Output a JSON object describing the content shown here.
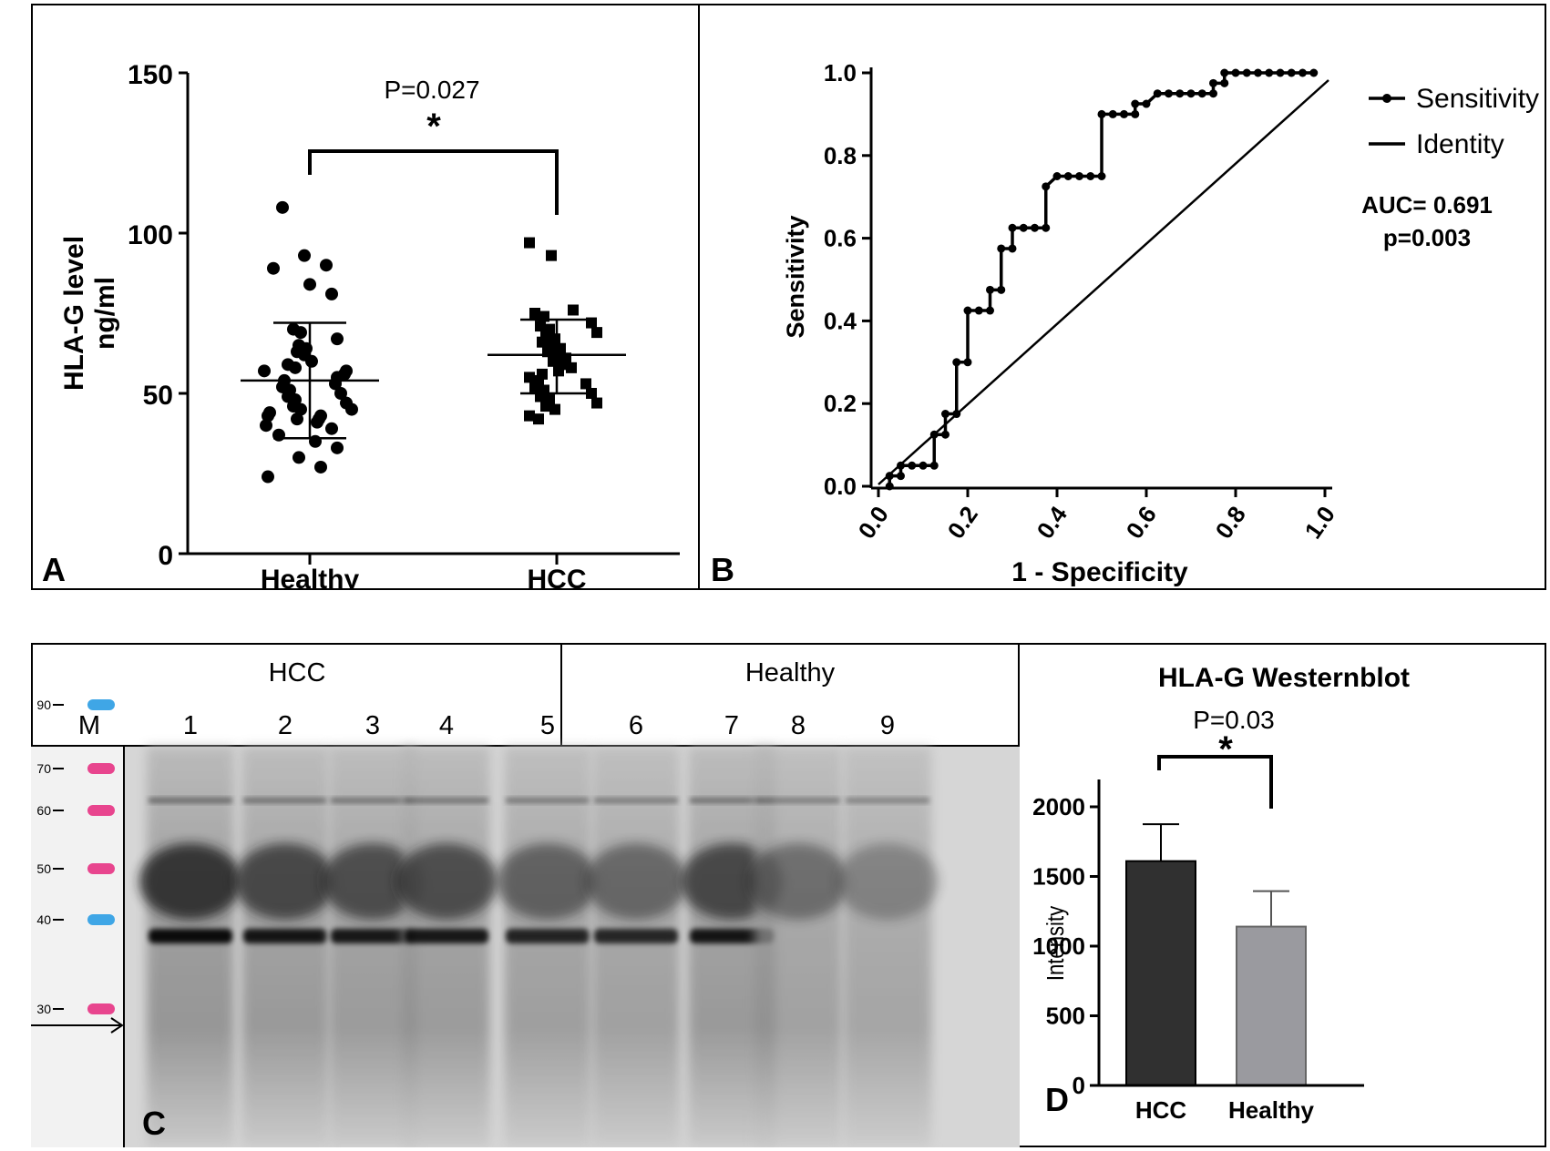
{
  "panel_a": {
    "letter": "A",
    "chart_data": {
      "type": "scatter",
      "ylabel_line1": "HLA-G level",
      "ylabel_line2": "ng/ml",
      "ylim": [
        0,
        150
      ],
      "yticks": [
        "0",
        "50",
        "100",
        "150"
      ],
      "categories": [
        "Healthy",
        "HCC"
      ],
      "groups": [
        {
          "name": "Healthy",
          "marker": "circle",
          "mean": 54,
          "sd_low": 36,
          "sd_high": 72,
          "values": [
            108,
            93,
            90,
            89,
            84,
            81,
            70,
            69,
            67,
            65,
            64,
            63,
            62,
            60,
            59,
            58,
            57,
            57,
            56,
            55,
            54,
            53,
            52,
            51,
            50,
            49,
            48,
            47,
            46,
            45,
            45,
            44,
            43,
            43,
            42,
            42,
            41,
            40,
            39,
            37,
            35,
            33,
            30,
            27,
            24
          ]
        },
        {
          "name": "HCC",
          "marker": "square",
          "mean": 62,
          "sd_low": 50,
          "sd_high": 73,
          "values": [
            97,
            93,
            76,
            75,
            74,
            72,
            71,
            70,
            69,
            68,
            67,
            66,
            65,
            64,
            63,
            62,
            61,
            60,
            59,
            58,
            57,
            56,
            55,
            54,
            53,
            52,
            51,
            50,
            49,
            48,
            47,
            46,
            45,
            43,
            42
          ]
        }
      ],
      "significance": {
        "p_text": "P=0.027",
        "star": "*"
      }
    }
  },
  "panel_b": {
    "letter": "B",
    "chart_data": {
      "type": "line",
      "xlabel": "1 - Specificity",
      "ylabel": "Sensitivity",
      "xlim": [
        0,
        1
      ],
      "ylim": [
        0,
        1
      ],
      "xticks": [
        "0.0",
        "0.2",
        "0.4",
        "0.6",
        "0.8",
        "1.0"
      ],
      "yticks": [
        "0.0",
        "0.2",
        "0.4",
        "0.6",
        "0.8",
        "1.0"
      ],
      "series": [
        {
          "name": "Sensitivity",
          "x": [
            0.025,
            0.025,
            0.05,
            0.05,
            0.075,
            0.1,
            0.125,
            0.125,
            0.15,
            0.15,
            0.175,
            0.175,
            0.2,
            0.2,
            0.225,
            0.25,
            0.25,
            0.275,
            0.275,
            0.3,
            0.3,
            0.325,
            0.35,
            0.375,
            0.375,
            0.4,
            0.425,
            0.45,
            0.475,
            0.5,
            0.5,
            0.525,
            0.55,
            0.575,
            0.575,
            0.6,
            0.625,
            0.65,
            0.675,
            0.7,
            0.725,
            0.75,
            0.75,
            0.775,
            0.775,
            0.8,
            0.825,
            0.85,
            0.875,
            0.9,
            0.925,
            0.95,
            0.975
          ],
          "y": [
            0.0,
            0.025,
            0.025,
            0.05,
            0.05,
            0.05,
            0.05,
            0.125,
            0.125,
            0.175,
            0.175,
            0.3,
            0.3,
            0.425,
            0.425,
            0.425,
            0.475,
            0.475,
            0.575,
            0.575,
            0.625,
            0.625,
            0.625,
            0.625,
            0.725,
            0.75,
            0.75,
            0.75,
            0.75,
            0.75,
            0.9,
            0.9,
            0.9,
            0.9,
            0.925,
            0.925,
            0.95,
            0.95,
            0.95,
            0.95,
            0.95,
            0.95,
            0.975,
            0.975,
            1.0,
            1.0,
            1.0,
            1.0,
            1.0,
            1.0,
            1.0,
            1.0,
            1.0
          ]
        },
        {
          "name": "Identity",
          "x": [
            0.0,
            1.0
          ],
          "y": [
            0.0,
            1.0
          ]
        }
      ],
      "legend": [
        "Sensitivity",
        "Identity"
      ],
      "annotation_line1": "AUC= 0.691",
      "annotation_line2": "p=0.003"
    }
  },
  "panel_c": {
    "letter": "C",
    "group_labels": [
      "HCC",
      "Healthy"
    ],
    "lane_labels": [
      "M",
      "1",
      "2",
      "3",
      "4",
      "5",
      "6",
      "7",
      "8",
      "9"
    ],
    "marker_kda": [
      "90",
      "70",
      "60",
      "50",
      "40",
      "30"
    ],
    "marker_colors": [
      "#3fa6e6",
      "#e8458e",
      "#e8458e",
      "#e8458e",
      "#3fa6e6",
      "#e8458e"
    ]
  },
  "panel_d": {
    "letter": "D",
    "chart_data": {
      "type": "bar",
      "title": "HLA-G Westernblot",
      "categories": [
        "HCC",
        "Healthy"
      ],
      "values": [
        1610,
        1140
      ],
      "errors": [
        265,
        255
      ],
      "colors": [
        "#303030",
        "#9a9a9f"
      ],
      "ylabel": "Intensity",
      "ylim": [
        0,
        2000
      ],
      "yticks": [
        "0",
        "500",
        "1000",
        "1500",
        "2000"
      ],
      "significance": {
        "p_text": "P=0.03",
        "star": "*"
      }
    }
  }
}
